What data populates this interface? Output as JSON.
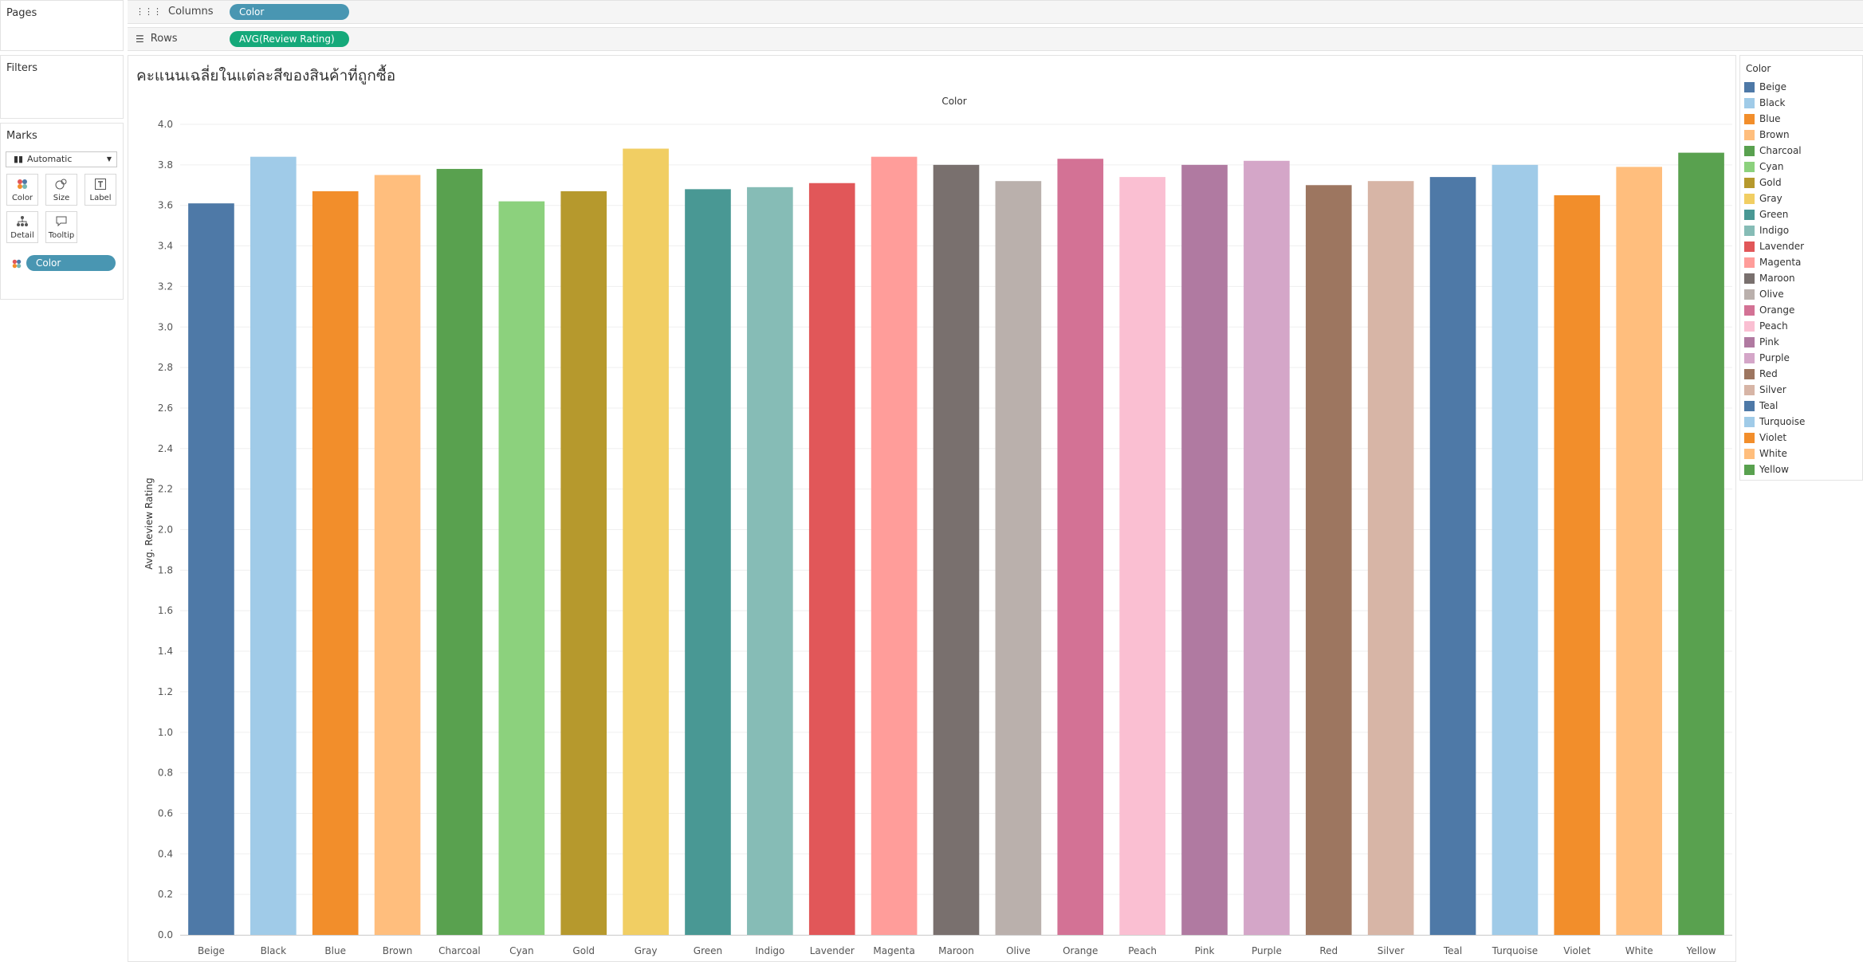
{
  "panels": {
    "pages_title": "Pages",
    "filters_title": "Filters",
    "marks_title": "Marks",
    "marks_type": "Automatic",
    "marks_buttons": [
      "Color",
      "Size",
      "Label",
      "Detail",
      "Tooltip"
    ],
    "marks_color_pill": "Color"
  },
  "shelves": {
    "columns_label": "Columns",
    "columns_pill": "Color",
    "rows_label": "Rows",
    "rows_pill": "AVG(Review Rating)"
  },
  "legend": {
    "title": "Color"
  },
  "colors": {
    "columns_pill": "#4996b2",
    "rows_pill": "#15a97a"
  },
  "chart_data": {
    "type": "bar",
    "title": "คะแนนเฉลี่ยในแต่ละสีของสินค้าที่ถูกซื้อ",
    "header": "Color",
    "xlabel": "",
    "ylabel": "Avg. Review Rating",
    "ylim": [
      0,
      4.0
    ],
    "yticks": [
      "0.0",
      "0.2",
      "0.4",
      "0.6",
      "0.8",
      "1.0",
      "1.2",
      "1.4",
      "1.6",
      "1.8",
      "2.0",
      "2.2",
      "2.4",
      "2.6",
      "2.8",
      "3.0",
      "3.2",
      "3.4",
      "3.6",
      "3.8",
      "4.0"
    ],
    "grid": true,
    "legend_position": "right",
    "categories": [
      "Beige",
      "Black",
      "Blue",
      "Brown",
      "Charcoal",
      "Cyan",
      "Gold",
      "Gray",
      "Green",
      "Indigo",
      "Lavender",
      "Magenta",
      "Maroon",
      "Olive",
      "Orange",
      "Peach",
      "Pink",
      "Purple",
      "Red",
      "Silver",
      "Teal",
      "Turquoise",
      "Violet",
      "White",
      "Yellow"
    ],
    "values": [
      3.61,
      3.84,
      3.67,
      3.75,
      3.78,
      3.62,
      3.67,
      3.88,
      3.68,
      3.69,
      3.71,
      3.84,
      3.8,
      3.72,
      3.83,
      3.74,
      3.8,
      3.82,
      3.7,
      3.72,
      3.74,
      3.8,
      3.65,
      3.79,
      3.86
    ],
    "bar_colors": [
      "#4e79a7",
      "#a0cbe8",
      "#f28e2b",
      "#ffbe7d",
      "#59a14f",
      "#8cd17d",
      "#b6992d",
      "#f1ce63",
      "#499894",
      "#86bcb6",
      "#e15759",
      "#ff9d9a",
      "#79706e",
      "#bab0ac",
      "#d37295",
      "#fabfd2",
      "#b07aa1",
      "#d4a6c8",
      "#9d7660",
      "#d7b5a6",
      "#4e79a7",
      "#a0cbe8",
      "#f28e2b",
      "#ffbe7d",
      "#59a14f"
    ]
  }
}
